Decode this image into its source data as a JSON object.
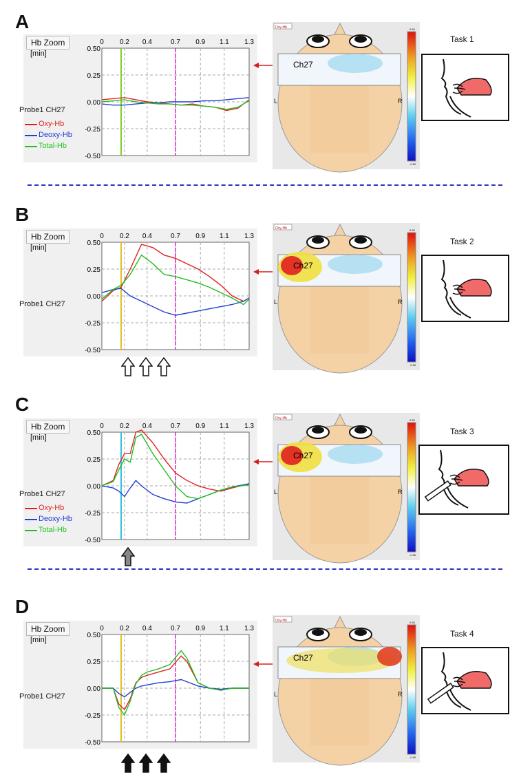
{
  "common": {
    "zoom_label": "Hb Zoom",
    "unit_label": "[min]",
    "probe_label": "Probe1 CH27",
    "x_ticks": [
      "0",
      "0.2",
      "0.4",
      "0.7",
      "0.9",
      "1.1",
      "1.3"
    ],
    "y_ticks": [
      "0.50",
      "0.25",
      "0.00",
      "-0.25",
      "-0.50"
    ],
    "channel_label": "Ch27",
    "left_label": "L",
    "right_label": "R",
    "colorbar_top": "0.50",
    "colorbar_bottom": "-0.50",
    "tab_label": "Oxy-Hb",
    "legend": [
      "Oxy-Hb",
      "Deoxy-Hb",
      "Total-Hb"
    ],
    "colors": {
      "oxy": "#e02020",
      "deoxy": "#2040d0",
      "total": "#20c020",
      "magenta": "#e020d0"
    }
  },
  "panels": [
    {
      "letter": "A",
      "task": "Task 1",
      "legend_visible": true,
      "marker_color": "#80d020",
      "arrows": "none",
      "arrow_count": 0,
      "hotspot": "none",
      "syringe": false
    },
    {
      "letter": "B",
      "task": "Task 2",
      "legend_visible": false,
      "marker_color": "#e0c020",
      "arrows": "white",
      "arrow_count": 3,
      "hotspot": "left",
      "syringe": false
    },
    {
      "letter": "C",
      "task": "Task 3",
      "legend_visible": true,
      "marker_color": "#30c0e0",
      "arrows": "gray",
      "arrow_count": 1,
      "hotspot": "left",
      "syringe": true
    },
    {
      "letter": "D",
      "task": "Task 4",
      "legend_visible": false,
      "marker_color": "#e0c020",
      "arrows": "black",
      "arrow_count": 3,
      "hotspot": "right",
      "syringe": true
    }
  ],
  "chart_data": [
    {
      "type": "line",
      "panel": "A",
      "x": [
        0,
        0.1,
        0.2,
        0.3,
        0.4,
        0.5,
        0.6,
        0.7,
        0.8,
        0.9,
        1.0,
        1.1,
        1.2,
        1.3
      ],
      "y_range": [
        -0.5,
        0.5
      ],
      "x_range": [
        0,
        1.3
      ],
      "grid": true,
      "markers": [
        0.17,
        0.65
      ],
      "series": [
        {
          "name": "Oxy-Hb",
          "values": [
            0.02,
            0.03,
            0.04,
            0.02,
            0.0,
            -0.01,
            -0.02,
            -0.03,
            -0.02,
            -0.04,
            -0.05,
            -0.08,
            -0.06,
            0.02
          ]
        },
        {
          "name": "Deoxy-Hb",
          "values": [
            -0.02,
            -0.03,
            -0.03,
            -0.02,
            -0.01,
            -0.01,
            0.0,
            0.0,
            0.0,
            0.01,
            0.01,
            0.02,
            0.03,
            0.04
          ]
        },
        {
          "name": "Total-Hb",
          "values": [
            0.0,
            0.01,
            0.02,
            0.0,
            -0.01,
            -0.02,
            -0.02,
            -0.03,
            -0.03,
            -0.04,
            -0.05,
            -0.07,
            -0.05,
            0.01
          ]
        }
      ]
    },
    {
      "type": "line",
      "panel": "B",
      "x": [
        0,
        0.1,
        0.17,
        0.25,
        0.35,
        0.45,
        0.55,
        0.65,
        0.75,
        0.85,
        0.95,
        1.05,
        1.15,
        1.25,
        1.3
      ],
      "y_range": [
        -0.5,
        0.5
      ],
      "x_range": [
        0,
        1.3
      ],
      "grid": true,
      "markers": [
        0.17,
        0.65
      ],
      "series": [
        {
          "name": "Oxy-Hb",
          "values": [
            -0.05,
            0.05,
            0.08,
            0.25,
            0.48,
            0.45,
            0.38,
            0.35,
            0.3,
            0.25,
            0.18,
            0.1,
            0.0,
            -0.05,
            -0.02
          ]
        },
        {
          "name": "Deoxy-Hb",
          "values": [
            0.03,
            0.06,
            0.07,
            0.0,
            -0.05,
            -0.1,
            -0.15,
            -0.18,
            -0.16,
            -0.14,
            -0.12,
            -0.1,
            -0.08,
            -0.05,
            -0.02
          ]
        },
        {
          "name": "Total-Hb",
          "values": [
            -0.03,
            0.06,
            0.1,
            0.2,
            0.38,
            0.3,
            0.2,
            0.18,
            0.15,
            0.12,
            0.08,
            0.03,
            -0.02,
            -0.08,
            -0.03
          ]
        }
      ]
    },
    {
      "type": "line",
      "panel": "C",
      "x": [
        0,
        0.1,
        0.15,
        0.2,
        0.25,
        0.3,
        0.35,
        0.45,
        0.55,
        0.65,
        0.75,
        0.85,
        0.95,
        1.05,
        1.15,
        1.3
      ],
      "y_range": [
        -0.5,
        0.5
      ],
      "x_range": [
        0,
        1.3
      ],
      "grid": true,
      "markers": [
        0.17,
        0.65
      ],
      "series": [
        {
          "name": "Oxy-Hb",
          "values": [
            0.0,
            0.05,
            0.2,
            0.3,
            0.3,
            0.5,
            0.52,
            0.4,
            0.25,
            0.12,
            0.05,
            0.0,
            -0.03,
            -0.05,
            -0.02,
            0.02
          ]
        },
        {
          "name": "Deoxy-Hb",
          "values": [
            0.0,
            -0.02,
            -0.05,
            -0.1,
            -0.02,
            0.05,
            0.0,
            -0.08,
            -0.12,
            -0.15,
            -0.16,
            -0.12,
            -0.08,
            -0.04,
            -0.01,
            0.02
          ]
        },
        {
          "name": "Total-Hb",
          "values": [
            0.0,
            0.04,
            0.15,
            0.25,
            0.22,
            0.45,
            0.48,
            0.3,
            0.15,
            0.0,
            -0.1,
            -0.12,
            -0.08,
            -0.04,
            -0.01,
            0.01
          ]
        }
      ]
    },
    {
      "type": "line",
      "panel": "D",
      "x": [
        0,
        0.1,
        0.15,
        0.2,
        0.25,
        0.3,
        0.35,
        0.4,
        0.5,
        0.6,
        0.7,
        0.75,
        0.85,
        0.95,
        1.05,
        1.15,
        1.3
      ],
      "y_range": [
        -0.5,
        0.5
      ],
      "x_range": [
        0,
        1.3
      ],
      "grid": true,
      "markers": [
        0.17,
        0.65
      ],
      "series": [
        {
          "name": "Oxy-Hb",
          "values": [
            0.0,
            0.0,
            -0.15,
            -0.2,
            -0.1,
            0.05,
            0.1,
            0.12,
            0.15,
            0.18,
            0.3,
            0.25,
            0.05,
            0.0,
            -0.02,
            0.0,
            0.0
          ]
        },
        {
          "name": "Deoxy-Hb",
          "values": [
            0.0,
            0.0,
            -0.05,
            -0.08,
            -0.04,
            0.0,
            0.02,
            0.03,
            0.05,
            0.06,
            0.08,
            0.06,
            0.02,
            0.0,
            -0.01,
            0.0,
            0.0
          ]
        },
        {
          "name": "Total-Hb",
          "values": [
            0.0,
            0.0,
            -0.18,
            -0.25,
            -0.12,
            0.04,
            0.12,
            0.15,
            0.18,
            0.22,
            0.35,
            0.28,
            0.05,
            0.0,
            -0.02,
            0.0,
            0.0
          ]
        }
      ]
    }
  ]
}
